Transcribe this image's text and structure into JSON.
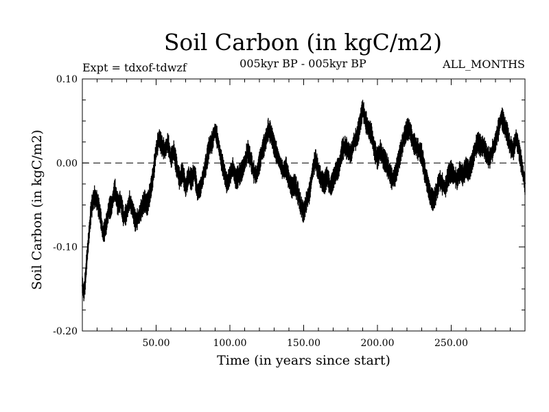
{
  "header": {
    "title": "Soil Carbon (in kgC/m2)",
    "experiment": "Expt = tdxof-tdwzf",
    "period": "005kyr BP - 005kyr BP",
    "months": "ALL_MONTHS"
  },
  "chart_data": {
    "type": "line",
    "title": "Soil Carbon (in kgC/m2)",
    "xlabel": "Time (in years since start)",
    "ylabel": "Soil Carbon (in kgC/m2)",
    "xlim": [
      0,
      300
    ],
    "ylim": [
      -0.2,
      0.1
    ],
    "xticks": [
      50,
      100,
      150,
      200,
      250
    ],
    "xtick_labels": [
      "50.00",
      "100.00",
      "150.00",
      "200.00",
      "250.00"
    ],
    "yticks": [
      -0.2,
      -0.1,
      0.0,
      0.1
    ],
    "ytick_labels": [
      "-0.20",
      "-0.10",
      "0.00",
      "0.10"
    ],
    "reference_line": {
      "y": 0.0,
      "style": "dashed"
    },
    "grid": false,
    "series": [
      {
        "color": "#000000",
        "x": [
          0,
          1,
          2,
          3,
          4,
          5,
          6,
          8,
          10,
          12,
          14,
          16,
          18,
          20,
          22,
          24,
          26,
          28,
          30,
          32,
          34,
          36,
          38,
          40,
          42,
          44,
          46,
          48,
          50,
          52,
          54,
          56,
          58,
          60,
          62,
          64,
          66,
          68,
          70,
          72,
          74,
          76,
          78,
          80,
          82,
          84,
          86,
          88,
          90,
          92,
          94,
          96,
          98,
          100,
          102,
          104,
          106,
          108,
          110,
          112,
          114,
          116,
          118,
          120,
          122,
          124,
          126,
          128,
          130,
          132,
          134,
          136,
          138,
          140,
          142,
          144,
          146,
          148,
          150,
          152,
          154,
          156,
          158,
          160,
          162,
          164,
          166,
          168,
          170,
          172,
          174,
          176,
          178,
          180,
          182,
          184,
          186,
          188,
          190,
          192,
          194,
          196,
          198,
          200,
          202,
          204,
          206,
          208,
          210,
          212,
          214,
          216,
          218,
          220,
          222,
          224,
          226,
          228,
          230,
          232,
          234,
          236,
          238,
          240,
          242,
          244,
          246,
          248,
          250,
          252,
          254,
          256,
          258,
          260,
          262,
          264,
          266,
          268,
          270,
          272,
          274,
          276,
          278,
          280,
          282,
          284,
          286,
          288,
          290,
          292,
          294,
          296,
          298,
          300
        ],
        "values": [
          -0.145,
          -0.155,
          -0.14,
          -0.115,
          -0.095,
          -0.075,
          -0.055,
          -0.04,
          -0.045,
          -0.06,
          -0.085,
          -0.075,
          -0.055,
          -0.05,
          -0.03,
          -0.05,
          -0.045,
          -0.065,
          -0.06,
          -0.045,
          -0.055,
          -0.07,
          -0.065,
          -0.055,
          -0.045,
          -0.05,
          -0.035,
          -0.015,
          0.015,
          0.03,
          0.02,
          0.015,
          0.025,
          0.005,
          0.015,
          -0.005,
          -0.02,
          -0.01,
          -0.03,
          -0.015,
          -0.02,
          -0.01,
          -0.035,
          -0.03,
          -0.015,
          0.0,
          0.02,
          0.025,
          0.04,
          0.025,
          0.005,
          -0.01,
          -0.025,
          -0.015,
          -0.005,
          -0.02,
          -0.015,
          -0.01,
          0.0,
          0.015,
          0.005,
          -0.01,
          -0.015,
          0.0,
          0.015,
          0.025,
          0.04,
          0.035,
          0.02,
          0.01,
          0.0,
          -0.01,
          -0.005,
          -0.02,
          -0.03,
          -0.025,
          -0.035,
          -0.05,
          -0.06,
          -0.045,
          -0.035,
          -0.01,
          0.005,
          -0.01,
          -0.02,
          -0.025,
          -0.015,
          -0.03,
          -0.02,
          -0.01,
          -0.005,
          0.015,
          0.02,
          0.015,
          0.01,
          0.025,
          0.03,
          0.045,
          0.065,
          0.05,
          0.04,
          0.035,
          0.015,
          0.005,
          0.015,
          0.005,
          0.0,
          -0.01,
          -0.02,
          -0.015,
          0.0,
          0.015,
          0.03,
          0.04,
          0.04,
          0.025,
          0.02,
          0.015,
          0.01,
          -0.01,
          -0.025,
          -0.04,
          -0.045,
          -0.035,
          -0.02,
          -0.025,
          -0.03,
          -0.015,
          -0.01,
          -0.015,
          -0.02,
          -0.01,
          -0.015,
          -0.005,
          -0.01,
          0.0,
          0.015,
          0.025,
          0.02,
          0.02,
          0.01,
          0.005,
          0.015,
          0.025,
          0.04,
          0.055,
          0.045,
          0.035,
          0.02,
          0.015,
          0.03,
          0.015,
          -0.005,
          -0.025
        ]
      }
    ]
  }
}
